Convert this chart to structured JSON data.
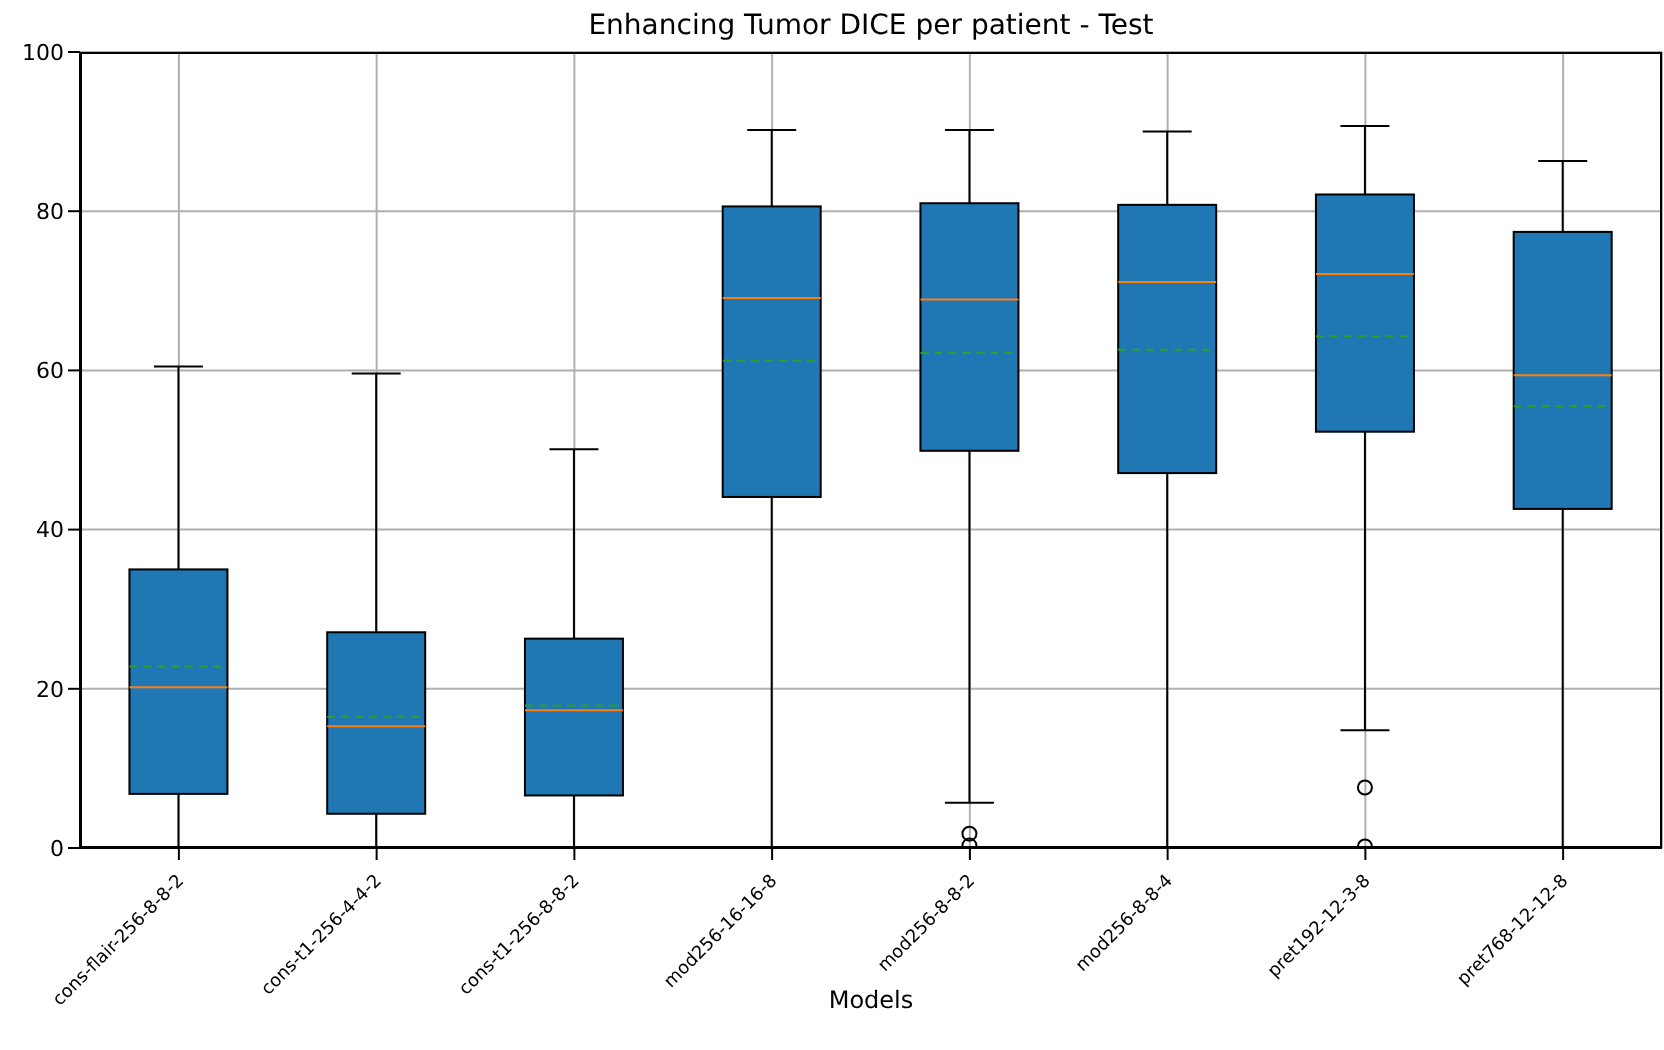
{
  "chart_data": {
    "type": "box",
    "title": "Enhancing Tumor DICE per patient - Test",
    "xlabel": "Models",
    "categories": [
      "cons-flair-256-8-8-2",
      "cons-t1-256-4-4-2",
      "cons-t1-256-8-8-2",
      "mod256-16-16-8",
      "mod256-8-8-2",
      "mod256-8-8-4",
      "pret192-12-3-8",
      "pret768-12-12-8"
    ],
    "series": [
      {
        "color": "#1f77b4",
        "boxes": [
          {
            "low": 0,
            "q1": 6.8,
            "median": 20.2,
            "q3": 35,
            "high": 60.5,
            "mean": 22.8
          },
          {
            "low": 0,
            "q1": 4.3,
            "median": 15.3,
            "q3": 27.1,
            "high": 59.6,
            "mean": 16.5
          },
          {
            "low": 0,
            "q1": 6.6,
            "median": 17.3,
            "q3": 26.3,
            "high": 50.1,
            "mean": 17.9
          },
          {
            "low": 0,
            "q1": 44.1,
            "median": 69.1,
            "q3": 80.6,
            "high": 90.2,
            "mean": 61.2
          },
          {
            "low": 5.7,
            "q1": 49.9,
            "median": 68.9,
            "q3": 81,
            "high": 90.2,
            "mean": 62.2,
            "outliers": [
              1.8,
              0.3
            ]
          },
          {
            "low": 0,
            "q1": 47.1,
            "median": 71.1,
            "q3": 80.8,
            "high": 90,
            "mean": 62.6
          },
          {
            "low": 14.8,
            "q1": 52.3,
            "median": 72.1,
            "q3": 82.1,
            "high": 90.7,
            "mean": 64.3,
            "outliers": [
              7.6,
              0.2
            ]
          },
          {
            "low": 0,
            "q1": 42.6,
            "median": 59.4,
            "q3": 77.4,
            "high": 86.3,
            "mean": 55.5
          }
        ]
      }
    ],
    "ylim": [
      0,
      100
    ],
    "yticks": [
      0,
      20,
      40,
      60,
      80,
      100
    ],
    "grid": true
  }
}
